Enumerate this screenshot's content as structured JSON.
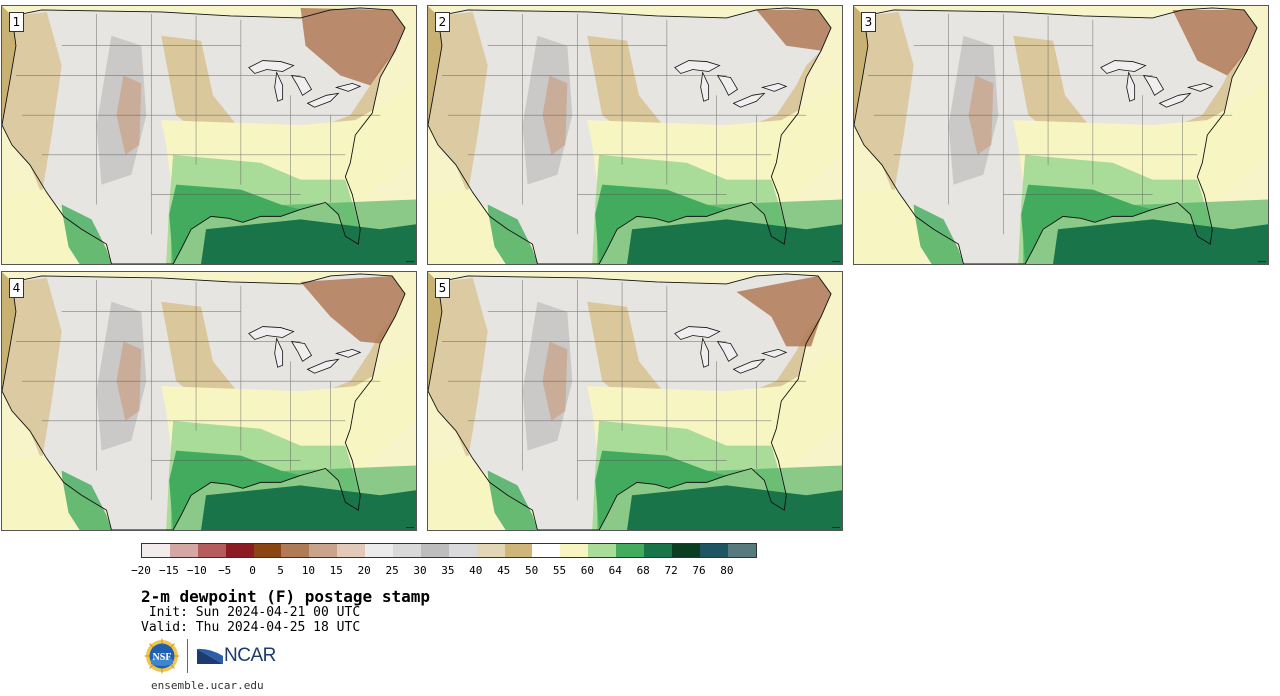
{
  "panels": [
    {
      "number": "1"
    },
    {
      "number": "2"
    },
    {
      "number": "3"
    },
    {
      "number": "4"
    },
    {
      "number": "5"
    }
  ],
  "colorbar": {
    "colors": [
      "#f3ecec",
      "#d4a7a4",
      "#b55c5c",
      "#8d1c22",
      "#8a4513",
      "#b07a57",
      "#c9a38a",
      "#e2c9ba",
      "#ececec",
      "#d9d9d9",
      "#bdbdbd",
      "#dadadc",
      "#e3d6b5",
      "#d0b57a",
      "#ffffff",
      "#f7f6c2",
      "#a8dc98",
      "#42ab5d",
      "#19744a",
      "#0a3d22",
      "#1f5563",
      "#567a7e"
    ],
    "labels": [
      "−20",
      "−15",
      "−10",
      "−5",
      "0",
      "5",
      "10",
      "15",
      "20",
      "25",
      "30",
      "35",
      "40",
      "45",
      "50",
      "55",
      "60",
      "64",
      "68",
      "72",
      "76",
      "80"
    ]
  },
  "title": "2-m dewpoint (F) postage stamp",
  "init": " Init: Sun 2024-04-21 00 UTC",
  "valid": "Valid: Thu 2024-04-25 18 UTC",
  "logos": {
    "nsf": "NSF",
    "ncar": "NCAR"
  },
  "site": "ensemble.ucar.edu"
}
